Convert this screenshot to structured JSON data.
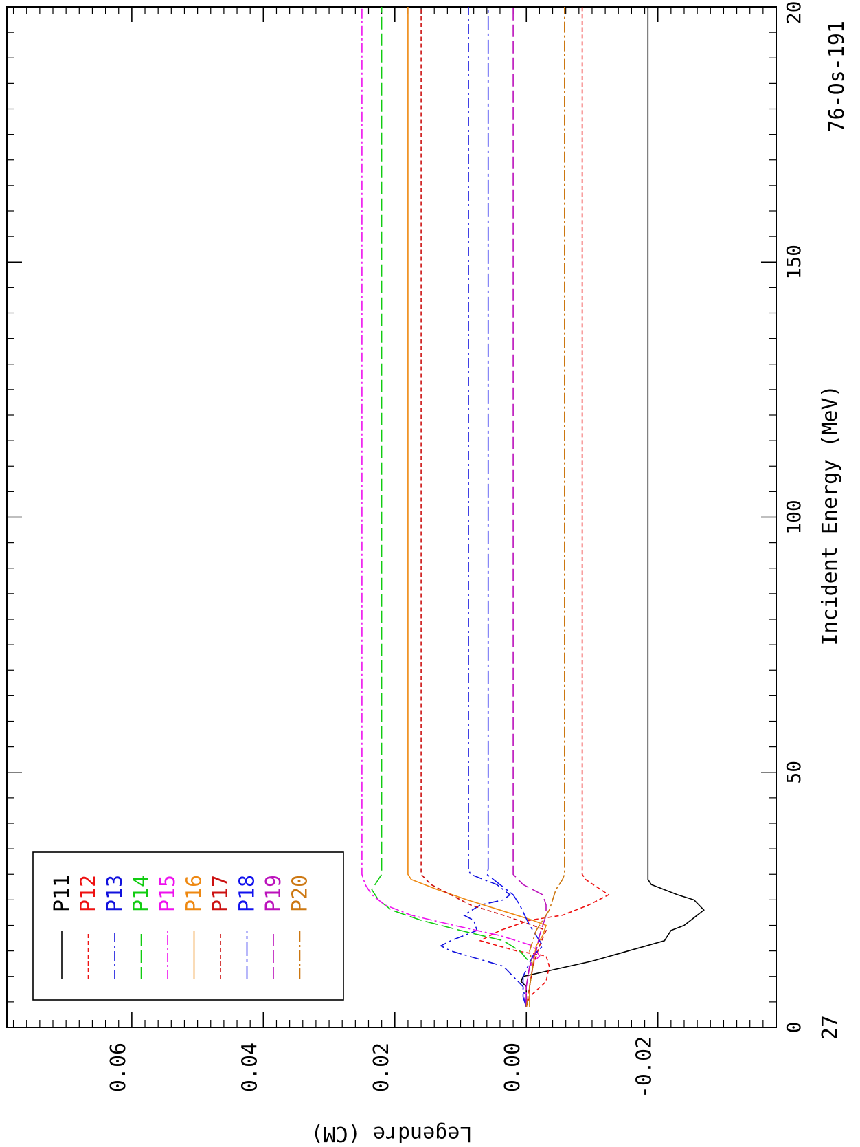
{
  "chart_data": {
    "type": "line",
    "orientation": "rotated-90-clockwise",
    "xlabel": "Incident Energy (MeV)",
    "ylabel": "Legendre (CM)",
    "xlim": [
      0,
      200
    ],
    "ylim": [
      -0.038,
      0.079
    ],
    "x_ticks": [
      0,
      50,
      100,
      150,
      200
    ],
    "x_tick_labels": [
      "0",
      "50",
      "100",
      "150",
      "200"
    ],
    "y_ticks": [
      -0.02,
      0.0,
      0.02,
      0.04,
      0.06
    ],
    "y_tick_labels": [
      "-0.02",
      "0.00",
      "0.02",
      "0.04",
      "0.06"
    ],
    "corner_label_left": "27",
    "corner_label_right": "76-Os-191",
    "legend_position": "lower-left (rotated view)",
    "grid": false,
    "series": [
      {
        "name": "P11",
        "color": "#000000",
        "dash": "",
        "points": [
          [
            4.0,
            0
          ],
          [
            8,
            0
          ],
          [
            9,
            0.0008
          ],
          [
            10,
            0.0005
          ],
          [
            13,
            -0.01
          ],
          [
            17,
            -0.021
          ],
          [
            19,
            -0.022
          ],
          [
            20,
            -0.024
          ],
          [
            23,
            -0.027
          ],
          [
            25,
            -0.0255
          ],
          [
            26,
            -0.023
          ],
          [
            28,
            -0.019
          ],
          [
            29,
            -0.0185
          ],
          [
            200,
            -0.0185
          ]
        ]
      },
      {
        "name": "P12",
        "color": "#ee1111",
        "dash": "6,4",
        "points": [
          [
            4.0,
            0
          ],
          [
            6,
            -0.0005
          ],
          [
            9,
            -0.003
          ],
          [
            12,
            -0.0035
          ],
          [
            14,
            -0.003
          ],
          [
            15,
            0.0015
          ],
          [
            17,
            0.007
          ],
          [
            19,
            0.004
          ],
          [
            21,
            -0.0005
          ],
          [
            22,
            -0.0055
          ],
          [
            24,
            -0.0095
          ],
          [
            26,
            -0.0125
          ],
          [
            29,
            -0.009
          ],
          [
            30,
            -0.0085
          ],
          [
            200,
            -0.0085
          ]
        ]
      },
      {
        "name": "P13",
        "color": "#1111dd",
        "dash": "14,5,3,5",
        "points": [
          [
            4.0,
            0
          ],
          [
            8,
            0.0005
          ],
          [
            12,
            0.0035
          ],
          [
            15,
            0.0115
          ],
          [
            16,
            0.013
          ],
          [
            17,
            0.0115
          ],
          [
            19,
            0.0075
          ],
          [
            21,
            0.008
          ],
          [
            22,
            0.0095
          ],
          [
            24,
            0.007
          ],
          [
            25,
            0.0035
          ],
          [
            26,
            0.0025
          ],
          [
            28,
            0.0045
          ],
          [
            30,
            0.0085
          ],
          [
            31,
            0.0088
          ],
          [
            200,
            0.0088
          ]
        ]
      },
      {
        "name": "P14",
        "color": "#11cc11",
        "dash": "18,6",
        "points": [
          [
            4.0,
            -0.0005
          ],
          [
            8,
            -0.0005
          ],
          [
            12,
            -0.001
          ],
          [
            15,
            0.001
          ],
          [
            17,
            0.0035
          ],
          [
            19,
            0.01
          ],
          [
            21,
            0.016
          ],
          [
            23,
            0.0205
          ],
          [
            25,
            0.0225
          ],
          [
            27,
            0.0235
          ],
          [
            30,
            0.022
          ],
          [
            31,
            0.022
          ],
          [
            200,
            0.022
          ]
        ]
      },
      {
        "name": "P15",
        "color": "#ee11ee",
        "dash": "14,4,3,4",
        "points": [
          [
            4.0,
            0
          ],
          [
            8,
            0
          ],
          [
            12,
            -0.0005
          ],
          [
            14,
            -0.002
          ],
          [
            16,
            -0.001
          ],
          [
            18,
            0.004
          ],
          [
            20,
            0.011
          ],
          [
            22,
            0.0175
          ],
          [
            24,
            0.0215
          ],
          [
            26,
            0.0235
          ],
          [
            28,
            0.0245
          ],
          [
            30,
            0.025
          ],
          [
            200,
            0.025
          ]
        ]
      },
      {
        "name": "P16",
        "color": "#ee8811",
        "dash": "",
        "points": [
          [
            4.0,
            -0.0005
          ],
          [
            8,
            -0.0005
          ],
          [
            12,
            -0.001
          ],
          [
            16,
            -0.0015
          ],
          [
            18,
            -0.0025
          ],
          [
            20,
            -0.003
          ],
          [
            21,
            -0.001
          ],
          [
            23,
            0.004
          ],
          [
            25,
            0.009
          ],
          [
            27,
            0.0135
          ],
          [
            29,
            0.0175
          ],
          [
            30,
            0.018
          ],
          [
            200,
            0.018
          ]
        ]
      },
      {
        "name": "P17",
        "color": "#cc1111",
        "dash": "6,4",
        "points": [
          [
            4.0,
            0
          ],
          [
            8,
            -0.0005
          ],
          [
            12,
            -0.001
          ],
          [
            16,
            -0.002
          ],
          [
            19,
            -0.003
          ],
          [
            20,
            -0.001
          ],
          [
            22,
            0.0035
          ],
          [
            24,
            0.0085
          ],
          [
            26,
            0.0115
          ],
          [
            28,
            0.0145
          ],
          [
            30,
            0.016
          ],
          [
            200,
            0.016
          ]
        ]
      },
      {
        "name": "P18",
        "color": "#1111ee",
        "dash": "20,5,4,5",
        "points": [
          [
            4.0,
            0
          ],
          [
            6,
            0.0005
          ],
          [
            10,
            0.0005
          ],
          [
            14,
            -0.001
          ],
          [
            16,
            -0.0025
          ],
          [
            17,
            -0.002
          ],
          [
            18,
            -0.0015
          ],
          [
            20,
            -0.0005
          ],
          [
            24,
            0.001
          ],
          [
            26,
            0.002
          ],
          [
            28,
            0.004
          ],
          [
            30,
            0.006
          ],
          [
            31,
            0.0058
          ],
          [
            200,
            0.0058
          ]
        ]
      },
      {
        "name": "P19",
        "color": "#bb11bb",
        "dash": "18,6",
        "points": [
          [
            4.0,
            0
          ],
          [
            8,
            0
          ],
          [
            12,
            -0.0005
          ],
          [
            15,
            -0.0015
          ],
          [
            18,
            -0.002
          ],
          [
            20,
            -0.0025
          ],
          [
            22,
            -0.003
          ],
          [
            24,
            -0.003
          ],
          [
            26,
            -0.0025
          ],
          [
            28,
            0.0005
          ],
          [
            30,
            0.002
          ],
          [
            31,
            0.002
          ],
          [
            200,
            0.002
          ]
        ]
      },
      {
        "name": "P20",
        "color": "#cc7711",
        "dash": "16,4,3,4",
        "points": [
          [
            4.0,
            0
          ],
          [
            8,
            -0.0005
          ],
          [
            12,
            -0.001
          ],
          [
            15,
            -0.0005
          ],
          [
            17,
            -0.001
          ],
          [
            19,
            -0.0015
          ],
          [
            21,
            -0.0025
          ],
          [
            23,
            -0.0035
          ],
          [
            25,
            -0.004
          ],
          [
            27,
            -0.0045
          ],
          [
            29,
            -0.0055
          ],
          [
            30,
            -0.0058
          ],
          [
            200,
            -0.0058
          ]
        ]
      }
    ]
  }
}
